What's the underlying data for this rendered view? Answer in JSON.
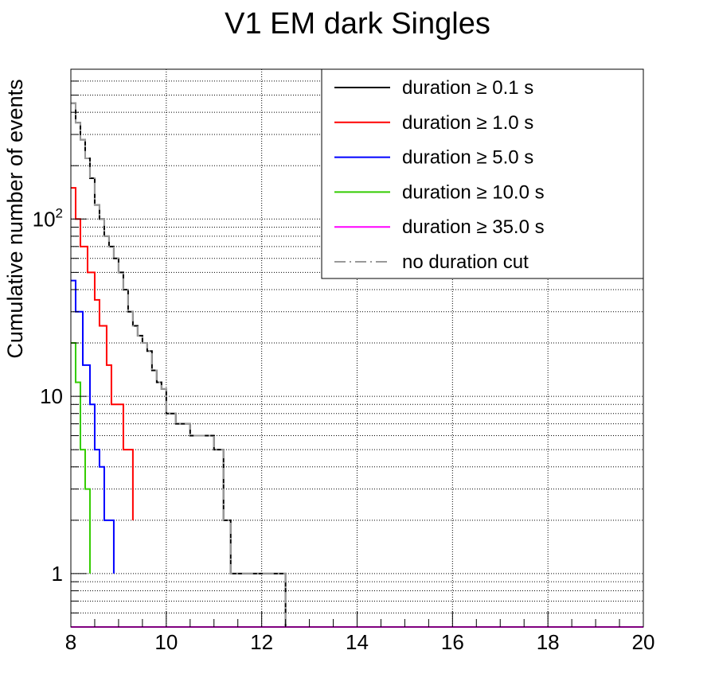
{
  "chart_data": {
    "type": "line",
    "title": "V1 EM dark Singles",
    "xlabel": "",
    "ylabel": "Cumulative number of events",
    "xlim": [
      8,
      20
    ],
    "ylim": [
      0.5,
      700
    ],
    "yscale": "log",
    "x_ticks": [
      "8",
      "10",
      "12",
      "14",
      "16",
      "18",
      "20"
    ],
    "y_ticks": [
      {
        "value": 1,
        "label": "1",
        "sup": ""
      },
      {
        "value": 10,
        "label": "10",
        "sup": ""
      },
      {
        "value": 100,
        "label": "10",
        "sup": "2"
      }
    ],
    "grid": true,
    "legend_position": "top-right",
    "series": [
      {
        "name": "duration ≥ 0.1 s",
        "color": "#000000",
        "dash": "none",
        "edges": [
          8,
          8.1,
          8.2,
          8.3,
          8.4,
          8.5,
          8.6,
          8.7,
          8.8,
          8.9,
          9.0,
          9.1,
          9.2,
          9.3,
          9.4,
          9.5,
          9.6,
          9.7,
          9.8,
          9.9,
          10.0,
          10.2,
          10.5,
          10.9,
          11.0,
          11.2,
          11.35,
          12.5
        ],
        "values": [
          450,
          350,
          280,
          220,
          170,
          120,
          100,
          80,
          70,
          60,
          50,
          40,
          30,
          25,
          22,
          20,
          18,
          14,
          12,
          11,
          8,
          7,
          6,
          6,
          5,
          2,
          1,
          0.5
        ]
      },
      {
        "name": "duration ≥ 1.0 s",
        "color": "#ff0000",
        "dash": "none",
        "edges": [
          8,
          8.1,
          8.2,
          8.35,
          8.5,
          8.6,
          8.75,
          8.85,
          9.1,
          9.3
        ],
        "values": [
          150,
          100,
          70,
          50,
          35,
          25,
          15,
          9,
          5,
          2
        ]
      },
      {
        "name": "duration ≥ 5.0 s",
        "color": "#0000ff",
        "dash": "none",
        "edges": [
          8,
          8.1,
          8.25,
          8.4,
          8.5,
          8.6,
          8.7,
          8.9
        ],
        "values": [
          45,
          30,
          15,
          9,
          5,
          4,
          2,
          1
        ]
      },
      {
        "name": "duration ≥ 10.0 s",
        "color": "#33cc00",
        "dash": "none",
        "edges": [
          8,
          8.1,
          8.2,
          8.3,
          8.4
        ],
        "values": [
          20,
          12,
          5,
          3,
          1
        ]
      },
      {
        "name": "duration ≥ 35.0 s",
        "color": "#ff00ff",
        "dash": "none",
        "edges": [
          8,
          20
        ],
        "values": [
          0.5
        ]
      },
      {
        "name": "no duration cut",
        "color": "#999999",
        "dash": "dashdot",
        "edges": [
          8,
          8.1,
          8.2,
          8.3,
          8.4,
          8.5,
          8.6,
          8.7,
          8.8,
          8.9,
          9.0,
          9.1,
          9.2,
          9.3,
          9.4,
          9.5,
          9.6,
          9.7,
          9.8,
          9.9,
          10.0,
          10.2,
          10.5,
          10.9,
          11.0,
          11.2,
          11.35,
          12.5
        ],
        "values": [
          450,
          350,
          280,
          220,
          170,
          120,
          100,
          80,
          70,
          60,
          50,
          40,
          30,
          25,
          22,
          20,
          18,
          14,
          12,
          11,
          8,
          7,
          6,
          6,
          5,
          2,
          1,
          0.5
        ]
      }
    ]
  }
}
